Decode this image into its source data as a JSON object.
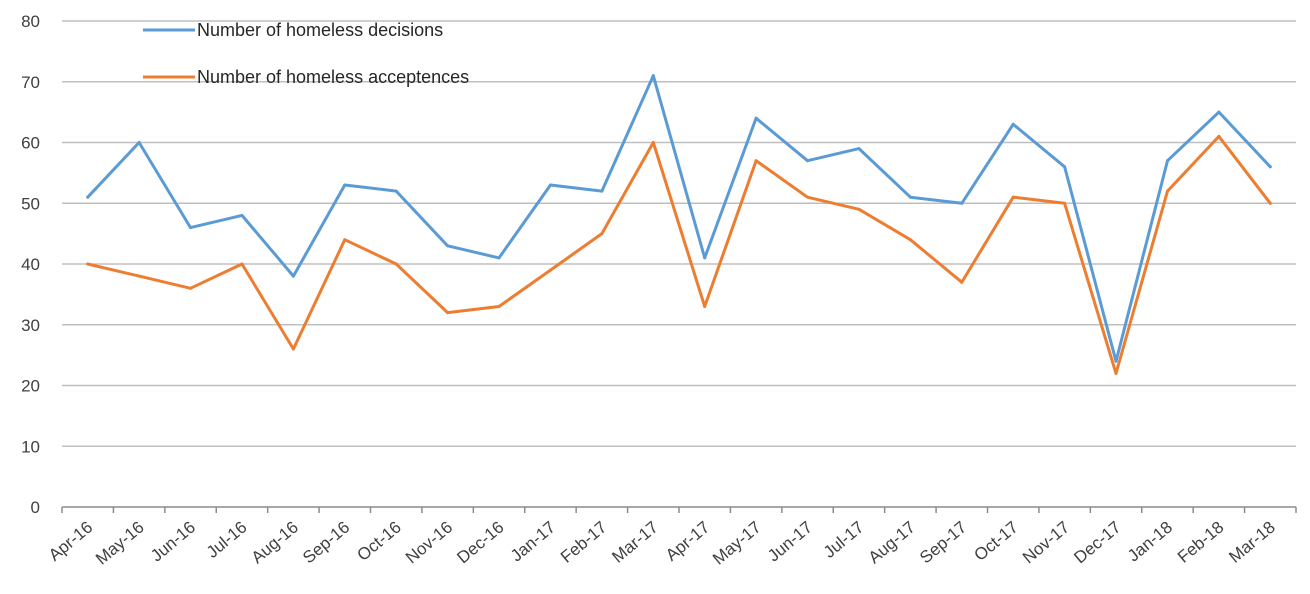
{
  "chart_data": {
    "type": "line",
    "title": "",
    "xlabel": "",
    "ylabel": "",
    "ylim": [
      0,
      80
    ],
    "yticks": [
      0,
      10,
      20,
      30,
      40,
      50,
      60,
      70,
      80
    ],
    "grid": true,
    "legend_position": "top-left",
    "categories": [
      "Apr-16",
      "May-16",
      "Jun-16",
      "Jul-16",
      "Aug-16",
      "Sep-16",
      "Oct-16",
      "Nov-16",
      "Dec-16",
      "Jan-17",
      "Feb-17",
      "Mar-17",
      "Apr-17",
      "May-17",
      "Jun-17",
      "Jul-17",
      "Aug-17",
      "Sep-17",
      "Oct-17",
      "Nov-17",
      "Dec-17",
      "Jan-18",
      "Feb-18",
      "Mar-18"
    ],
    "series": [
      {
        "name": "Number of homeless decisions",
        "color": "#5b9bd5",
        "values": [
          51,
          60,
          46,
          48,
          38,
          53,
          52,
          43,
          41,
          53,
          52,
          71,
          41,
          64,
          57,
          59,
          51,
          50,
          63,
          56,
          24,
          57,
          65,
          56
        ]
      },
      {
        "name": "Number of homeless acceptences",
        "color": "#ed7d31",
        "values": [
          40,
          38,
          36,
          40,
          26,
          44,
          40,
          32,
          33,
          39,
          45,
          60,
          33,
          57,
          51,
          49,
          44,
          37,
          51,
          50,
          22,
          52,
          61,
          50
        ]
      }
    ]
  }
}
